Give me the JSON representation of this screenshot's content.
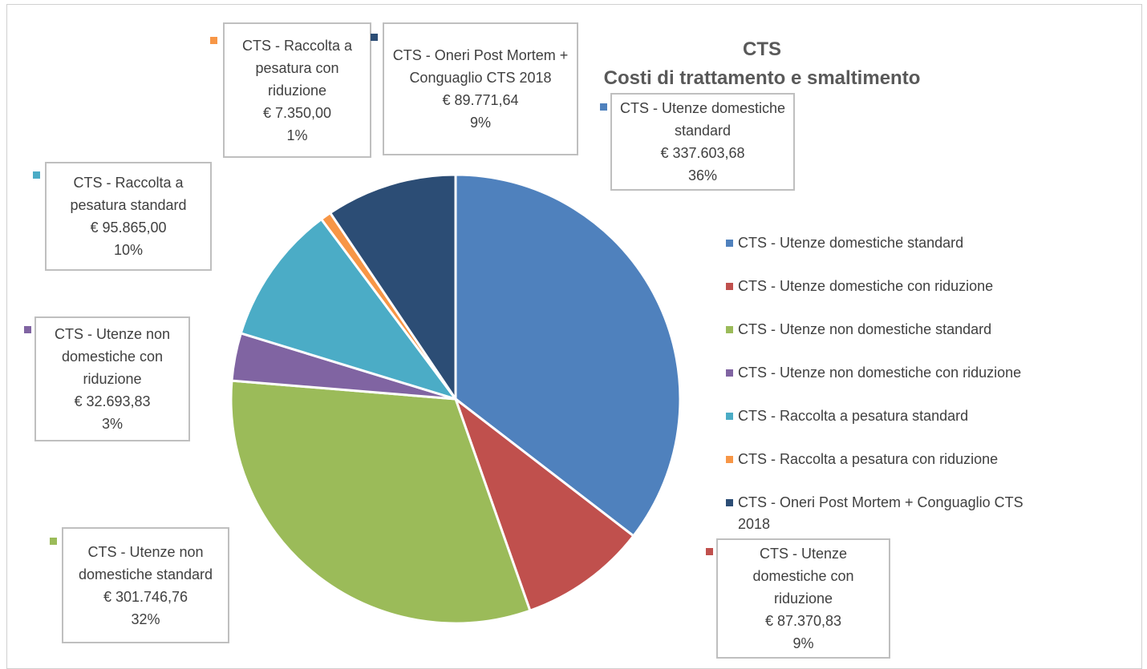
{
  "chart_data": {
    "type": "pie",
    "title": "CTS",
    "subtitle": "Costi di trattamento e smaltimento",
    "categories": [
      "CTS - Utenze domestiche standard",
      "CTS - Utenze domestiche con riduzione",
      "CTS - Utenze non domestiche standard",
      "CTS - Utenze non domestiche con riduzione",
      "CTS - Raccolta a pesatura standard",
      "CTS - Raccolta a pesatura con riduzione",
      "CTS - Oneri Post Mortem + Conguaglio CTS 2018"
    ],
    "values": [
      337603.68,
      87370.83,
      301746.76,
      32693.83,
      95865,
      7350,
      89771.64
    ],
    "value_labels": [
      "€ 337.603,68",
      "€ 87.370,83",
      "€ 301.746,76",
      "€ 32.693,83",
      "€ 95.865,00",
      "€ 7.350,00",
      "€ 89.771,64"
    ],
    "percent_labels": [
      "36%",
      "9%",
      "32%",
      "3%",
      "10%",
      "1%",
      "9%"
    ],
    "colors": [
      "#4f81bd",
      "#c0504d",
      "#9bbb59",
      "#8064a2",
      "#4bacc6",
      "#f79646",
      "#2c4d75"
    ],
    "legend": "right"
  }
}
